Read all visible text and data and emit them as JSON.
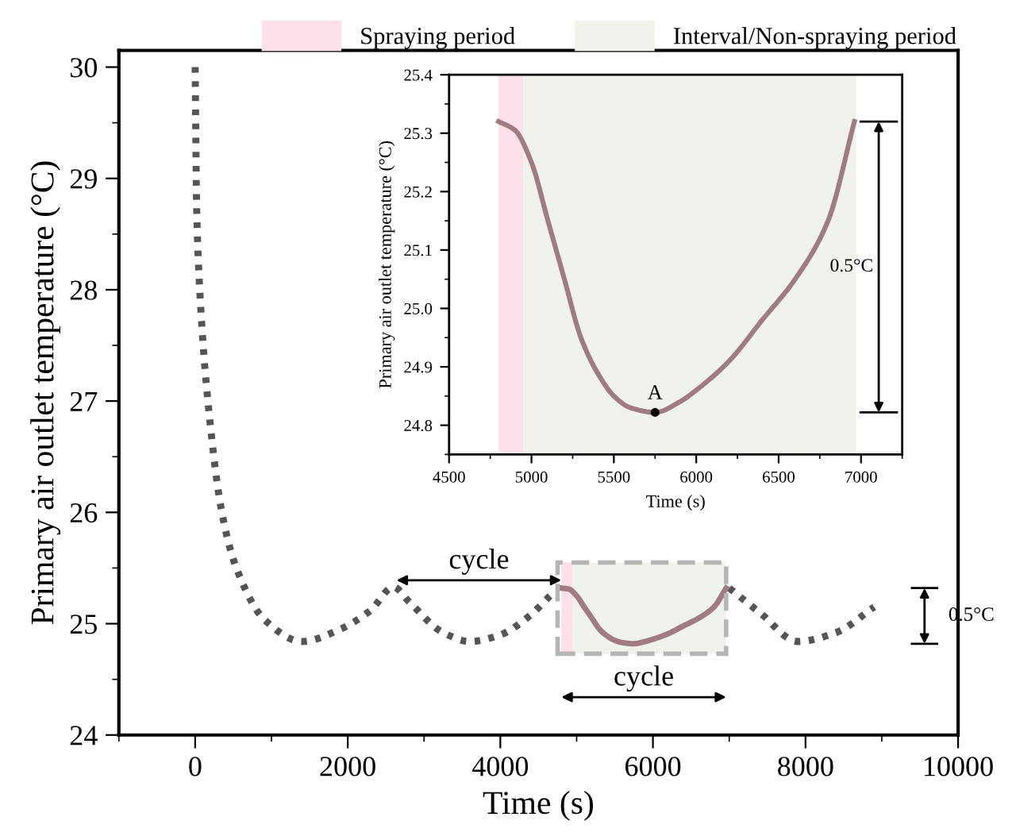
{
  "chart_data": [
    {
      "type": "line",
      "xlabel": "Time (s)",
      "ylabel": "Primary air outlet temperature (°C)",
      "xlim": [
        -1000,
        10000
      ],
      "xticks": [
        0,
        2000,
        4000,
        6000,
        8000,
        10000
      ],
      "ylim": [
        24,
        30.15
      ],
      "yticks": [
        24,
        25,
        26,
        27,
        28,
        29,
        30
      ],
      "legend": "top",
      "series": [
        {
          "color": "#555555",
          "line_style": "dotted",
          "x": [
            0,
            20,
            60,
            167,
            350,
            540,
            917,
            1400,
            1900,
            2300,
            2600,
            2800,
            3250,
            3600,
            4000,
            4400,
            4650,
            4800,
            7000,
            7400,
            7900,
            8400,
            8900
          ],
          "values": [
            30,
            28.73,
            28,
            27,
            26,
            25.5,
            25.03,
            24.84,
            24.95,
            25.12,
            25.33,
            25.2,
            24.92,
            24.84,
            24.9,
            25.08,
            25.25,
            null,
            25.32,
            25.1,
            24.84,
            24.92,
            25.15
          ]
        },
        {
          "color": "#a07c82",
          "line_style": "solid",
          "x": [
            4800,
            4900,
            5000,
            5100,
            5200,
            5300,
            5400,
            5500,
            5600,
            5750,
            5900,
            6000,
            6200,
            6400,
            6600,
            6800,
            6960
          ],
          "values": [
            25.32,
            25.31,
            25.25,
            25.15,
            25.05,
            24.95,
            24.89,
            24.85,
            24.83,
            24.82,
            24.84,
            24.86,
            24.91,
            24.98,
            25.05,
            25.15,
            25.32
          ]
        }
      ],
      "bands": [
        {
          "axis": "x",
          "from": 4800,
          "to": 4950,
          "label": "Spraying period",
          "color": "#fde0e8"
        },
        {
          "axis": "x",
          "from": 4950,
          "to": 6960,
          "label": "Interval/Non-spraying period",
          "color": "#eff3ec"
        }
      ],
      "annotations": [
        "cycle",
        "cycle",
        "0.5°C"
      ]
    },
    {
      "type": "line",
      "xlabel": "Time (s)",
      "ylabel": "Primary air outlet temperature (°C)",
      "xlim": [
        4500,
        7250
      ],
      "xticks": [
        4500,
        5000,
        5500,
        6000,
        6500,
        7000
      ],
      "ylim": [
        24.75,
        25.4
      ],
      "yticks": [
        {
          "value": 24.8,
          "label": "24.8"
        },
        {
          "value": 24.9,
          "label": "24.9"
        },
        {
          "value": 25.0,
          "label": "25.0"
        },
        {
          "value": 25.1,
          "label": "25.1"
        },
        {
          "value": 25.2,
          "label": "25.2"
        },
        {
          "value": 25.3,
          "label": "25.3"
        },
        {
          "value": 25.4,
          "label": "25.4"
        }
      ],
      "series": [
        {
          "color": "#a07c82",
          "line_style": "solid",
          "x": [
            4800,
            4900,
            5000,
            5100,
            5200,
            5300,
            5400,
            5500,
            5600,
            5750,
            5900,
            6000,
            6200,
            6400,
            6600,
            6800,
            6960
          ],
          "values": [
            25.32,
            25.305,
            25.25,
            25.15,
            25.05,
            24.95,
            24.89,
            24.85,
            24.83,
            24.822,
            24.84,
            24.86,
            24.91,
            24.98,
            25.05,
            25.15,
            25.32
          ]
        }
      ],
      "bands": [
        {
          "axis": "x",
          "from": 4800,
          "to": 4950,
          "color": "#fde0e8"
        },
        {
          "axis": "x",
          "from": 4950,
          "to": 6970,
          "color": "#eff3ec"
        }
      ],
      "annotations": [
        {
          "text": "A",
          "x": 5750,
          "y": 24.822
        },
        "0.5°C"
      ]
    }
  ]
}
